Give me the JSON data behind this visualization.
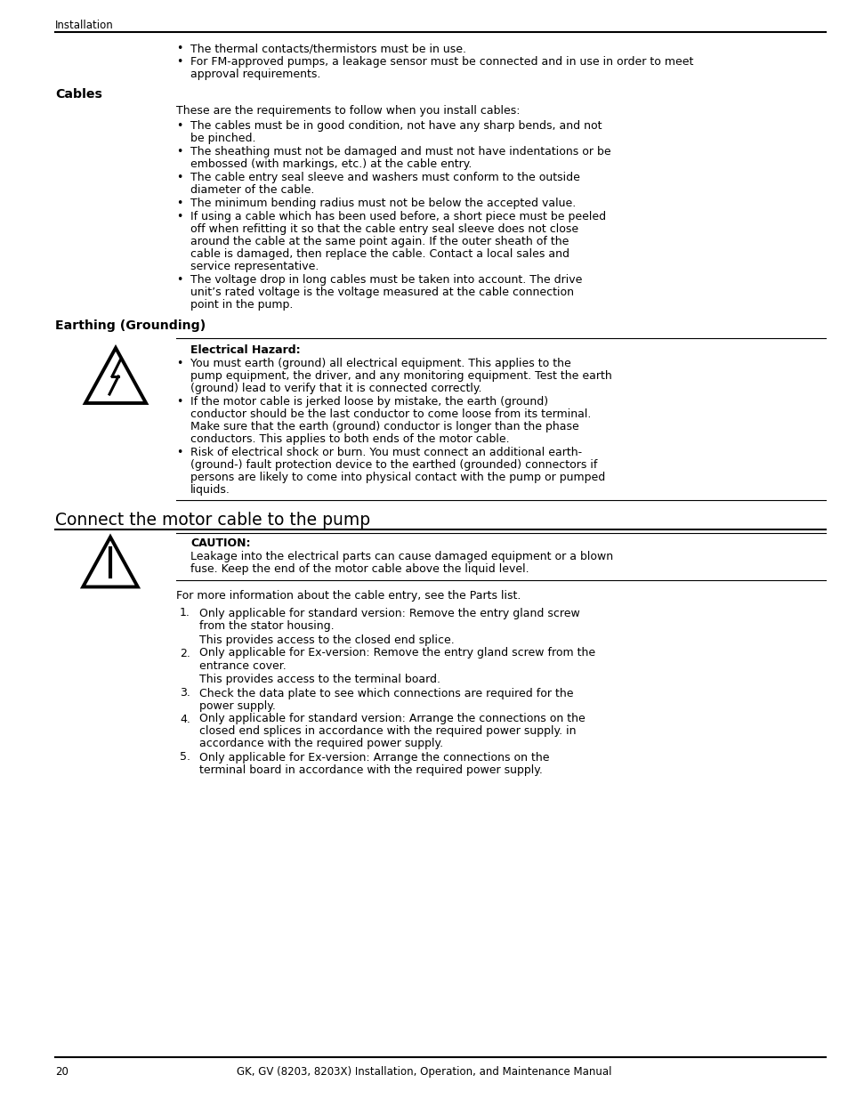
{
  "page_number": "20",
  "footer_text": "GK, GV (8203, 8203X) Installation, Operation, and Maintenance Manual",
  "header_text": "Installation",
  "bg_color": "#ffffff",
  "text_color": "#000000",
  "content": {
    "bullet_intro_1": "The thermal contacts/thermistors must be in use.",
    "bullet_intro_2": "For FM-approved pumps, a leakage sensor must be connected and in use in order to meet approval requirements.",
    "section_cables": "Cables",
    "cables_intro": "These are the requirements to follow when you install cables:",
    "cables_bullets": [
      "The cables must be in good condition, not have any sharp bends, and not be pinched.",
      "The sheathing must not be damaged and must not have indentations or be embossed (with markings, etc.) at the cable entry.",
      "The cable entry seal sleeve and washers must conform to the outside diameter of the cable.",
      "The minimum bending radius must not be below the accepted value.",
      "If using a cable which has been used before, a short piece must be peeled off when refitting it so that the cable entry seal sleeve does not close around the cable at the same point again. If the outer sheath of the cable is damaged, then replace the cable. Contact a local sales and service representative.",
      "The voltage drop in long cables must be taken into account. The drive unit’s rated voltage is the voltage measured at the cable connection point in the pump."
    ],
    "section_earthing": "Earthing (Grounding)",
    "hazard_label": "Electrical Hazard:",
    "hazard_bullets": [
      "You must earth (ground) all electrical equipment. This applies to the pump equipment, the driver, and any monitoring equipment. Test the earth (ground) lead to verify that it is connected correctly.",
      "If the motor cable is jerked loose by mistake, the earth (ground) conductor should be the last conductor to come loose from its terminal. Make sure that the earth (ground) conductor is longer than the phase conductors. This applies to both ends of the motor cable.",
      "Risk of electrical shock or burn. You must connect an additional earth- (ground-) fault protection device to the earthed (grounded) connectors if persons are likely to come into physical contact with the pump or pumped liquids."
    ],
    "section_connect": "Connect the motor cable to the pump",
    "caution_label": "CAUTION:",
    "caution_text": "Leakage into the electrical parts can cause damaged equipment or a blown fuse. Keep the end of the motor cable above the liquid level.",
    "connect_intro": "For more information about the cable entry, see the Parts list.",
    "connect_steps": [
      {
        "num": "1.",
        "text": "Only applicable for standard version: Remove the entry gland screw from the stator housing.",
        "sub": "This provides access to the closed end splice."
      },
      {
        "num": "2.",
        "text": "Only applicable for Ex-version: Remove the entry gland screw from the entrance cover.",
        "sub": "This provides access to the terminal board."
      },
      {
        "num": "3.",
        "text": "Check the data plate to see which connections are required for the power supply.",
        "sub": null
      },
      {
        "num": "4.",
        "text": "Only applicable for standard version: Arrange the connections on the closed end splices in accordance with the required power supply. in accordance with the required power supply.",
        "sub": null
      },
      {
        "num": "5.",
        "text": "Only applicable for Ex-version: Arrange the connections on the terminal board in accordance with the required power supply.",
        "sub": null
      }
    ]
  }
}
